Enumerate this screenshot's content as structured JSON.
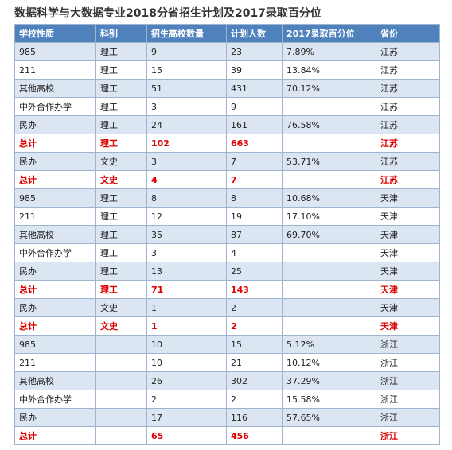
{
  "title": "数据科学与大数据专业2018分省招生计划及2017录取百分位",
  "table": {
    "header": [
      "学校性质",
      "科别",
      "招生高校数量",
      "计划人数",
      "2017录取百分位",
      "省份"
    ],
    "rows": [
      [
        "985",
        "理工",
        "9",
        "23",
        "7.89%",
        "江苏"
      ],
      [
        "211",
        "理工",
        "15",
        "39",
        "13.84%",
        "江苏"
      ],
      [
        "其他高校",
        "理工",
        "51",
        "431",
        "70.12%",
        "江苏"
      ],
      [
        "中外合作办学",
        "理工",
        "3",
        "9",
        null,
        "江苏"
      ],
      [
        "民办",
        "理工",
        "24",
        "161",
        "76.58%",
        "江苏"
      ],
      [
        "总计",
        "理工",
        "102",
        "663",
        null,
        "江苏"
      ],
      [
        "民办",
        "文史",
        "3",
        "7",
        "53.71%",
        "江苏"
      ],
      [
        "总计",
        "文史",
        "4",
        "7",
        null,
        "江苏"
      ],
      [
        "985",
        "理工",
        "8",
        "8",
        "10.68%",
        "天津"
      ],
      [
        "211",
        "理工",
        "12",
        "19",
        "17.10%",
        "天津"
      ],
      [
        "其他高校",
        "理工",
        "35",
        "87",
        "69.70%",
        "天津"
      ],
      [
        "中外合作办学",
        "理工",
        "3",
        "4",
        null,
        "天津"
      ],
      [
        "民办",
        "理工",
        "13",
        "25",
        null,
        "天津"
      ],
      [
        "总计",
        "理工",
        "71",
        "143",
        null,
        "天津"
      ],
      [
        "民办",
        "文史",
        "1",
        "2",
        null,
        "天津"
      ],
      [
        "总计",
        "文史",
        "1",
        "2",
        null,
        "天津"
      ],
      [
        "985",
        null,
        "10",
        "15",
        "5.12%",
        "浙江"
      ],
      [
        "211",
        null,
        "10",
        "21",
        "10.12%",
        "浙江"
      ],
      [
        "其他高校",
        null,
        "26",
        "302",
        "37.29%",
        "浙江"
      ],
      [
        "中外合作办学",
        null,
        "2",
        "2",
        "15.58%",
        "浙江"
      ],
      [
        "民办",
        null,
        "17",
        "116",
        "57.65%",
        "浙江"
      ],
      [
        "总计",
        null,
        "65",
        "456",
        null,
        "浙江"
      ]
    ],
    "highlight_rows": [
      5,
      7,
      13,
      15,
      21
    ]
  }
}
